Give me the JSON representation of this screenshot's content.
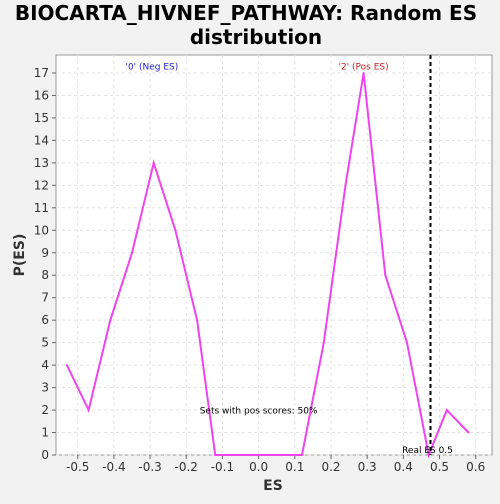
{
  "chart_data": {
    "type": "line",
    "title_lines": [
      "BIOCARTA_HIVNEF_PATHWAY: Random ES",
      "distribution"
    ],
    "xlabel": "ES",
    "ylabel": "P(ES)",
    "xlim": [
      -0.56,
      0.645
    ],
    "ylim": [
      0,
      17.8
    ],
    "x_ticks": [
      -0.5,
      -0.4,
      -0.3,
      -0.2,
      -0.1,
      0.0,
      0.1,
      0.2,
      0.3,
      0.4,
      0.5,
      0.6
    ],
    "x_tick_labels": [
      "-0.5",
      "-0.4",
      "-0.3",
      "-0.2",
      "-0.1",
      "0.0",
      "0.1",
      "0.2",
      "0.3",
      "0.4",
      "0.5",
      "0.6"
    ],
    "y_ticks": [
      0,
      1,
      2,
      3,
      4,
      5,
      6,
      7,
      8,
      9,
      10,
      11,
      12,
      13,
      14,
      15,
      16,
      17
    ],
    "y_tick_labels": [
      "0",
      "1",
      "2",
      "3",
      "4",
      "5",
      "6",
      "7",
      "8",
      "9",
      "10",
      "11",
      "12",
      "13",
      "14",
      "15",
      "16",
      "17"
    ],
    "grid": true,
    "series": [
      {
        "color": "#ee44ee",
        "x": [
          -0.53,
          -0.47,
          -0.41,
          -0.35,
          -0.29,
          -0.23,
          -0.17,
          -0.12,
          -0.06,
          0.0,
          0.06,
          0.12,
          0.18,
          0.24,
          0.29,
          0.35,
          0.41,
          0.47,
          0.52,
          0.58
        ],
        "y": [
          4,
          2,
          6,
          9,
          13,
          10,
          6,
          0,
          0,
          0,
          0,
          0,
          5,
          12,
          17,
          8,
          5,
          0,
          2,
          1
        ]
      }
    ],
    "threshold": {
      "x": 0.475,
      "label": "Real ES 0.5",
      "color": "#000000"
    },
    "annotations": [
      {
        "text": "'0' (Neg ES)",
        "color": "#2222cc",
        "x": -0.295,
        "y": 17.15,
        "anchor": "middle"
      },
      {
        "text": "'2' (Pos ES)",
        "color": "#cc2222",
        "x": 0.29,
        "y": 17.15,
        "anchor": "middle"
      },
      {
        "text": "Sets with pos scores: 50%",
        "color": "#000000",
        "x": 0.0,
        "y": 1.85,
        "anchor": "middle"
      }
    ]
  }
}
